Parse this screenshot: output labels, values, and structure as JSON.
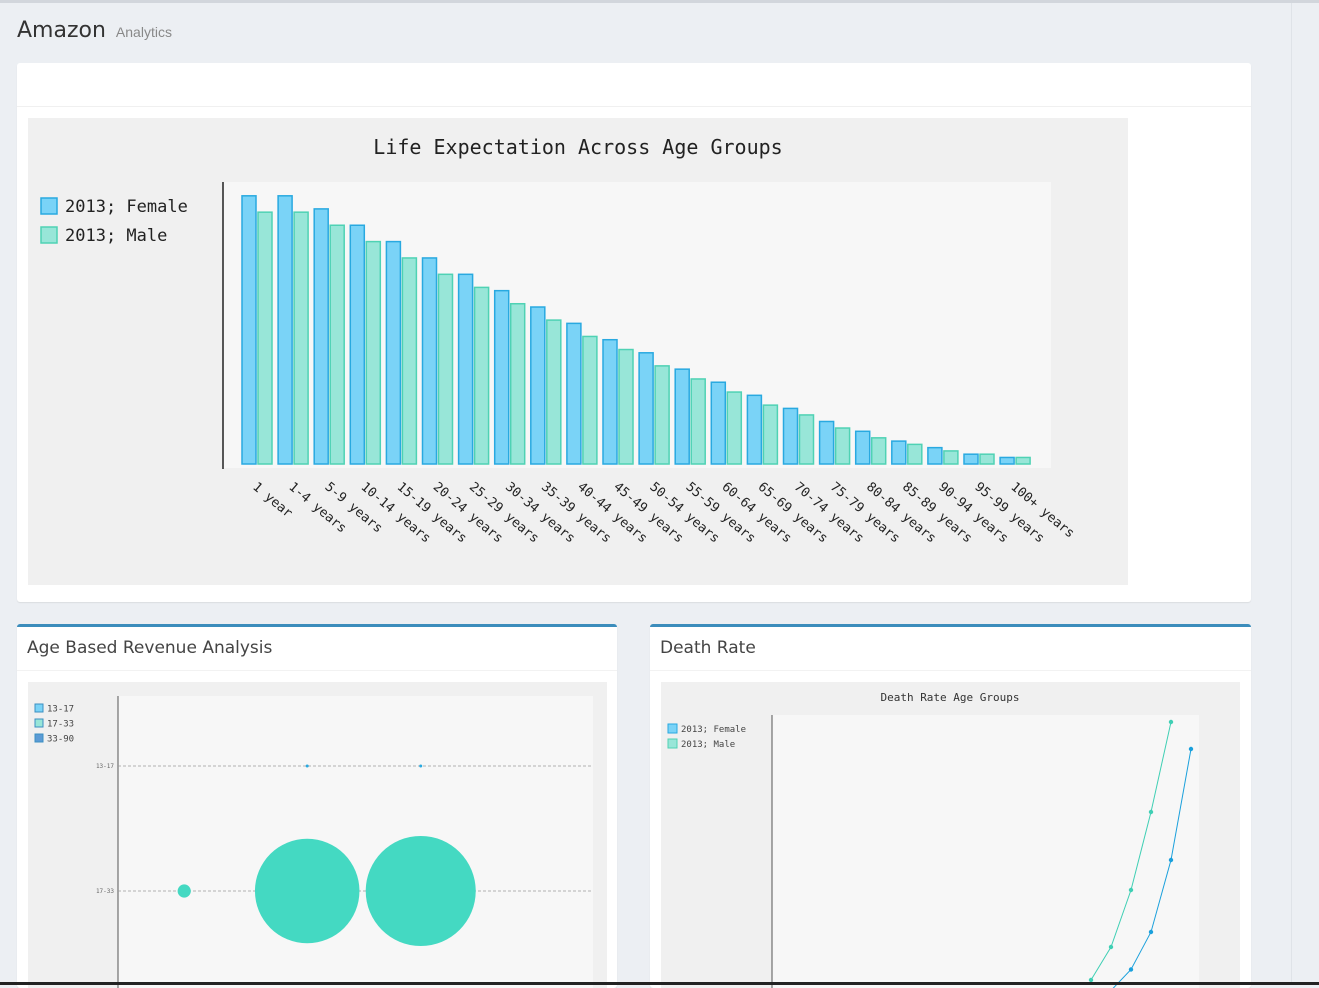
{
  "header": {
    "title": "Amazon",
    "subtitle": "Analytics"
  },
  "colors": {
    "female": "#7ad3f7",
    "female_stroke": "#29a9e0",
    "male": "#98e6d8",
    "male_stroke": "#4fd2b4",
    "accent": "#3c8dbc"
  },
  "life_expectancy": {
    "chart_data": {
      "type": "bar",
      "title": "Life Expectation Across Age Groups",
      "categories": [
        "1 year",
        "1-4 years",
        "5-9 years",
        "10-14 years",
        "15-19 years",
        "20-24 years",
        "25-29 years",
        "30-34 years",
        "35-39 years",
        "40-44 years",
        "45-49 years",
        "50-54 years",
        "55-59 years",
        "60-64 years",
        "65-69 years",
        "70-74 years",
        "75-79 years",
        "80-84 years",
        "85-89 years",
        "90-94 years",
        "95-99 years",
        "100+ years"
      ],
      "series": [
        {
          "name": "2013; Female",
          "values": [
            82,
            82,
            78,
            73,
            68,
            63,
            58,
            53,
            48,
            43,
            38,
            34,
            29,
            25,
            21,
            17,
            13,
            10,
            7,
            5,
            3,
            2
          ]
        },
        {
          "name": "2013; Male",
          "values": [
            77,
            77,
            73,
            68,
            63,
            58,
            54,
            49,
            44,
            39,
            35,
            30,
            26,
            22,
            18,
            15,
            11,
            8,
            6,
            4,
            3,
            2
          ]
        }
      ],
      "ylim": [
        0,
        85
      ],
      "legend": "left"
    }
  },
  "revenue": {
    "card_title": "Age Based Revenue Analysis",
    "chart_data": {
      "type": "scatter",
      "title": "",
      "legend_entries": [
        "13-17",
        "17-33",
        "33-90"
      ],
      "y_categories": [
        "13-17",
        "17-33"
      ],
      "points": [
        {
          "group": "13-17",
          "x": 0.4,
          "size": 0.02
        },
        {
          "group": "13-17",
          "x": 0.64,
          "size": 0.02
        },
        {
          "group": "17-33",
          "x": 0.14,
          "size": 0.12
        },
        {
          "group": "17-33",
          "x": 0.4,
          "size": 0.95
        },
        {
          "group": "17-33",
          "x": 0.64,
          "size": 1.0
        }
      ],
      "legend": "top-left"
    },
    "colors": [
      "#7ad3f7",
      "#98e6d8",
      "#5b9bd5"
    ]
  },
  "death_rate": {
    "card_title": "Death Rate",
    "chart_data": {
      "type": "line",
      "title": "Death Rate Age Groups",
      "series": [
        {
          "name": "2013; Female",
          "x": [
            18,
            19,
            20,
            21,
            22
          ],
          "values": [
            0.1,
            1.5,
            4.0,
            8.8,
            16.2
          ]
        },
        {
          "name": "2013; Male",
          "x": [
            18,
            19,
            20,
            21,
            22
          ],
          "values": [
            0.8,
            3.0,
            6.8,
            12.0,
            18.0
          ]
        }
      ],
      "legend": "top-left"
    }
  }
}
